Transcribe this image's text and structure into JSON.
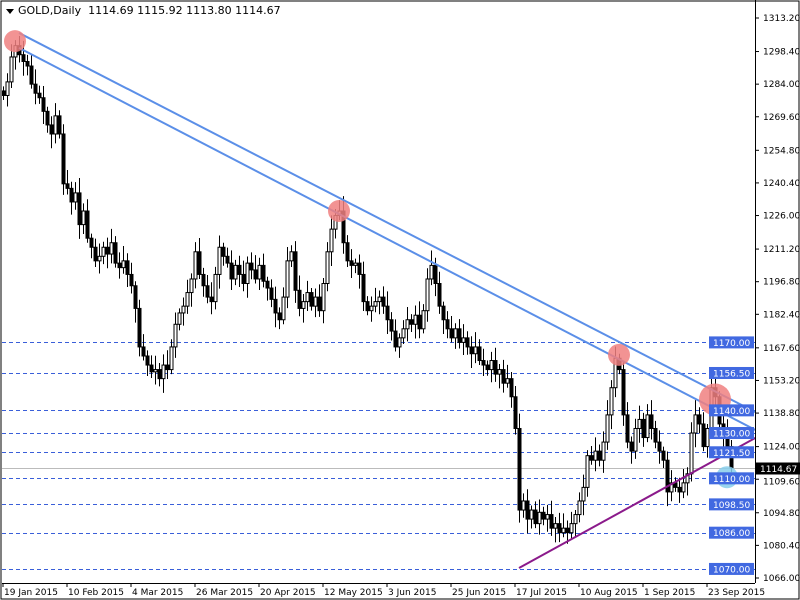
{
  "header": {
    "symbol": "GOLD,Daily",
    "ohlc": "1114.69 1115.92 1113.80 1114.67"
  },
  "chart_data": {
    "type": "candlestick",
    "title": "GOLD,Daily",
    "ylim": [
      1066.0,
      1313.2
    ],
    "y_ticks": [
      "1313.20",
      "1298.40",
      "1284.00",
      "1269.60",
      "1254.80",
      "1240.40",
      "1226.00",
      "1211.20",
      "1196.80",
      "1182.40",
      "1167.60",
      "1153.20",
      "1138.80",
      "1124.00",
      "1109.60",
      "1094.80",
      "1080.40",
      "1066.00"
    ],
    "x_ticks": [
      {
        "bar": 0,
        "label": "19 Jan 2015"
      },
      {
        "bar": 16,
        "label": "10 Feb 2015"
      },
      {
        "bar": 32,
        "label": "4 Mar 2015"
      },
      {
        "bar": 48,
        "label": "26 Mar 2015"
      },
      {
        "bar": 64,
        "label": "20 Apr 2015"
      },
      {
        "bar": 80,
        "label": "12 May 2015"
      },
      {
        "bar": 96,
        "label": "3 Jun 2015"
      },
      {
        "bar": 112,
        "label": "25 Jun 2015"
      },
      {
        "bar": 128,
        "label": "17 Jul 2015"
      },
      {
        "bar": 144,
        "label": "10 Aug 2015"
      },
      {
        "bar": 160,
        "label": "1 Sep 2015"
      },
      {
        "bar": 176,
        "label": "23 Sep 2015"
      }
    ],
    "closes": [
      1279,
      1285,
      1296,
      1301,
      1297,
      1294,
      1292,
      1284,
      1280,
      1278,
      1272,
      1266,
      1262,
      1270,
      1262,
      1240,
      1238,
      1232,
      1236,
      1222,
      1228,
      1216,
      1212,
      1206,
      1208,
      1212,
      1209,
      1214,
      1205,
      1203,
      1206,
      1200,
      1195,
      1185,
      1168,
      1164,
      1160,
      1157,
      1158,
      1154,
      1160,
      1158,
      1168,
      1178,
      1183,
      1186,
      1192,
      1198,
      1210,
      1200,
      1195,
      1190,
      1188,
      1200,
      1212,
      1208,
      1205,
      1198,
      1204,
      1200,
      1196,
      1205,
      1202,
      1198,
      1204,
      1197,
      1194,
      1189,
      1183,
      1180,
      1190,
      1206,
      1210,
      1193,
      1185,
      1188,
      1192,
      1186,
      1190,
      1184,
      1196,
      1210,
      1220,
      1226,
      1228,
      1214,
      1206,
      1204,
      1205,
      1200,
      1188,
      1184,
      1186,
      1188,
      1190,
      1186,
      1180,
      1175,
      1168,
      1172,
      1176,
      1180,
      1178,
      1182,
      1176,
      1184,
      1198,
      1204,
      1196,
      1186,
      1180,
      1176,
      1172,
      1176,
      1170,
      1172,
      1168,
      1165,
      1168,
      1162,
      1160,
      1158,
      1162,
      1156,
      1158,
      1152,
      1154,
      1146,
      1132,
      1096,
      1100,
      1092,
      1096,
      1090,
      1095,
      1092,
      1094,
      1088,
      1090,
      1086,
      1088,
      1086,
      1090,
      1094,
      1100,
      1106,
      1120,
      1118,
      1122,
      1118,
      1126,
      1138,
      1150,
      1163,
      1158,
      1138,
      1126,
      1122,
      1132,
      1136,
      1128,
      1138,
      1132,
      1126,
      1122,
      1118,
      1104,
      1108,
      1106,
      1104,
      1108,
      1112,
      1130,
      1138,
      1134,
      1124,
      1132,
      1150,
      1146,
      1134,
      1130,
      1124,
      1114.67
    ],
    "levels": [
      {
        "price": 1170.0,
        "label": "1170.00"
      },
      {
        "price": 1156.5,
        "label": "1156.50"
      },
      {
        "price": 1140.0,
        "label": "1140.00"
      },
      {
        "price": 1130.0,
        "label": "1130.00"
      },
      {
        "price": 1121.5,
        "label": "1121.50"
      },
      {
        "price": 1110.0,
        "label": "1110.00"
      },
      {
        "price": 1098.5,
        "label": "1098.50"
      },
      {
        "price": 1086.0,
        "label": "1086.00"
      },
      {
        "price": 1070.0,
        "label": "1070.00"
      }
    ],
    "current_price": {
      "price": 1114.67,
      "label": "1114.67"
    },
    "trendlines": [
      {
        "from": [
          4,
          1306.6
        ],
        "to": [
          189,
          1138.4
        ],
        "color": "#5b8fe8"
      },
      {
        "from": [
          4,
          1300.0
        ],
        "to": [
          189,
          1130.5
        ],
        "color": "#5b8fe8"
      },
      {
        "from": [
          129,
          1070.4
        ],
        "to": [
          189,
          1128.7
        ],
        "color": "#8b1a8b"
      }
    ],
    "markers": [
      {
        "bar": 3,
        "price": 1303,
        "color": "#f08080"
      },
      {
        "bar": 84,
        "price": 1228,
        "color": "#f08080"
      },
      {
        "bar": 154,
        "price": 1164.5,
        "color": "#f08080"
      },
      {
        "bar": 178,
        "price": 1144.8,
        "color": "#f08080",
        "big": true
      },
      {
        "bar": 181,
        "price": 1110.5,
        "color": "#87ceeb"
      }
    ],
    "colors": {
      "level_line": "#3a5fd9",
      "level_label_bg": "#4169e1",
      "current_bg": "#000000",
      "candle": "#000000"
    }
  }
}
